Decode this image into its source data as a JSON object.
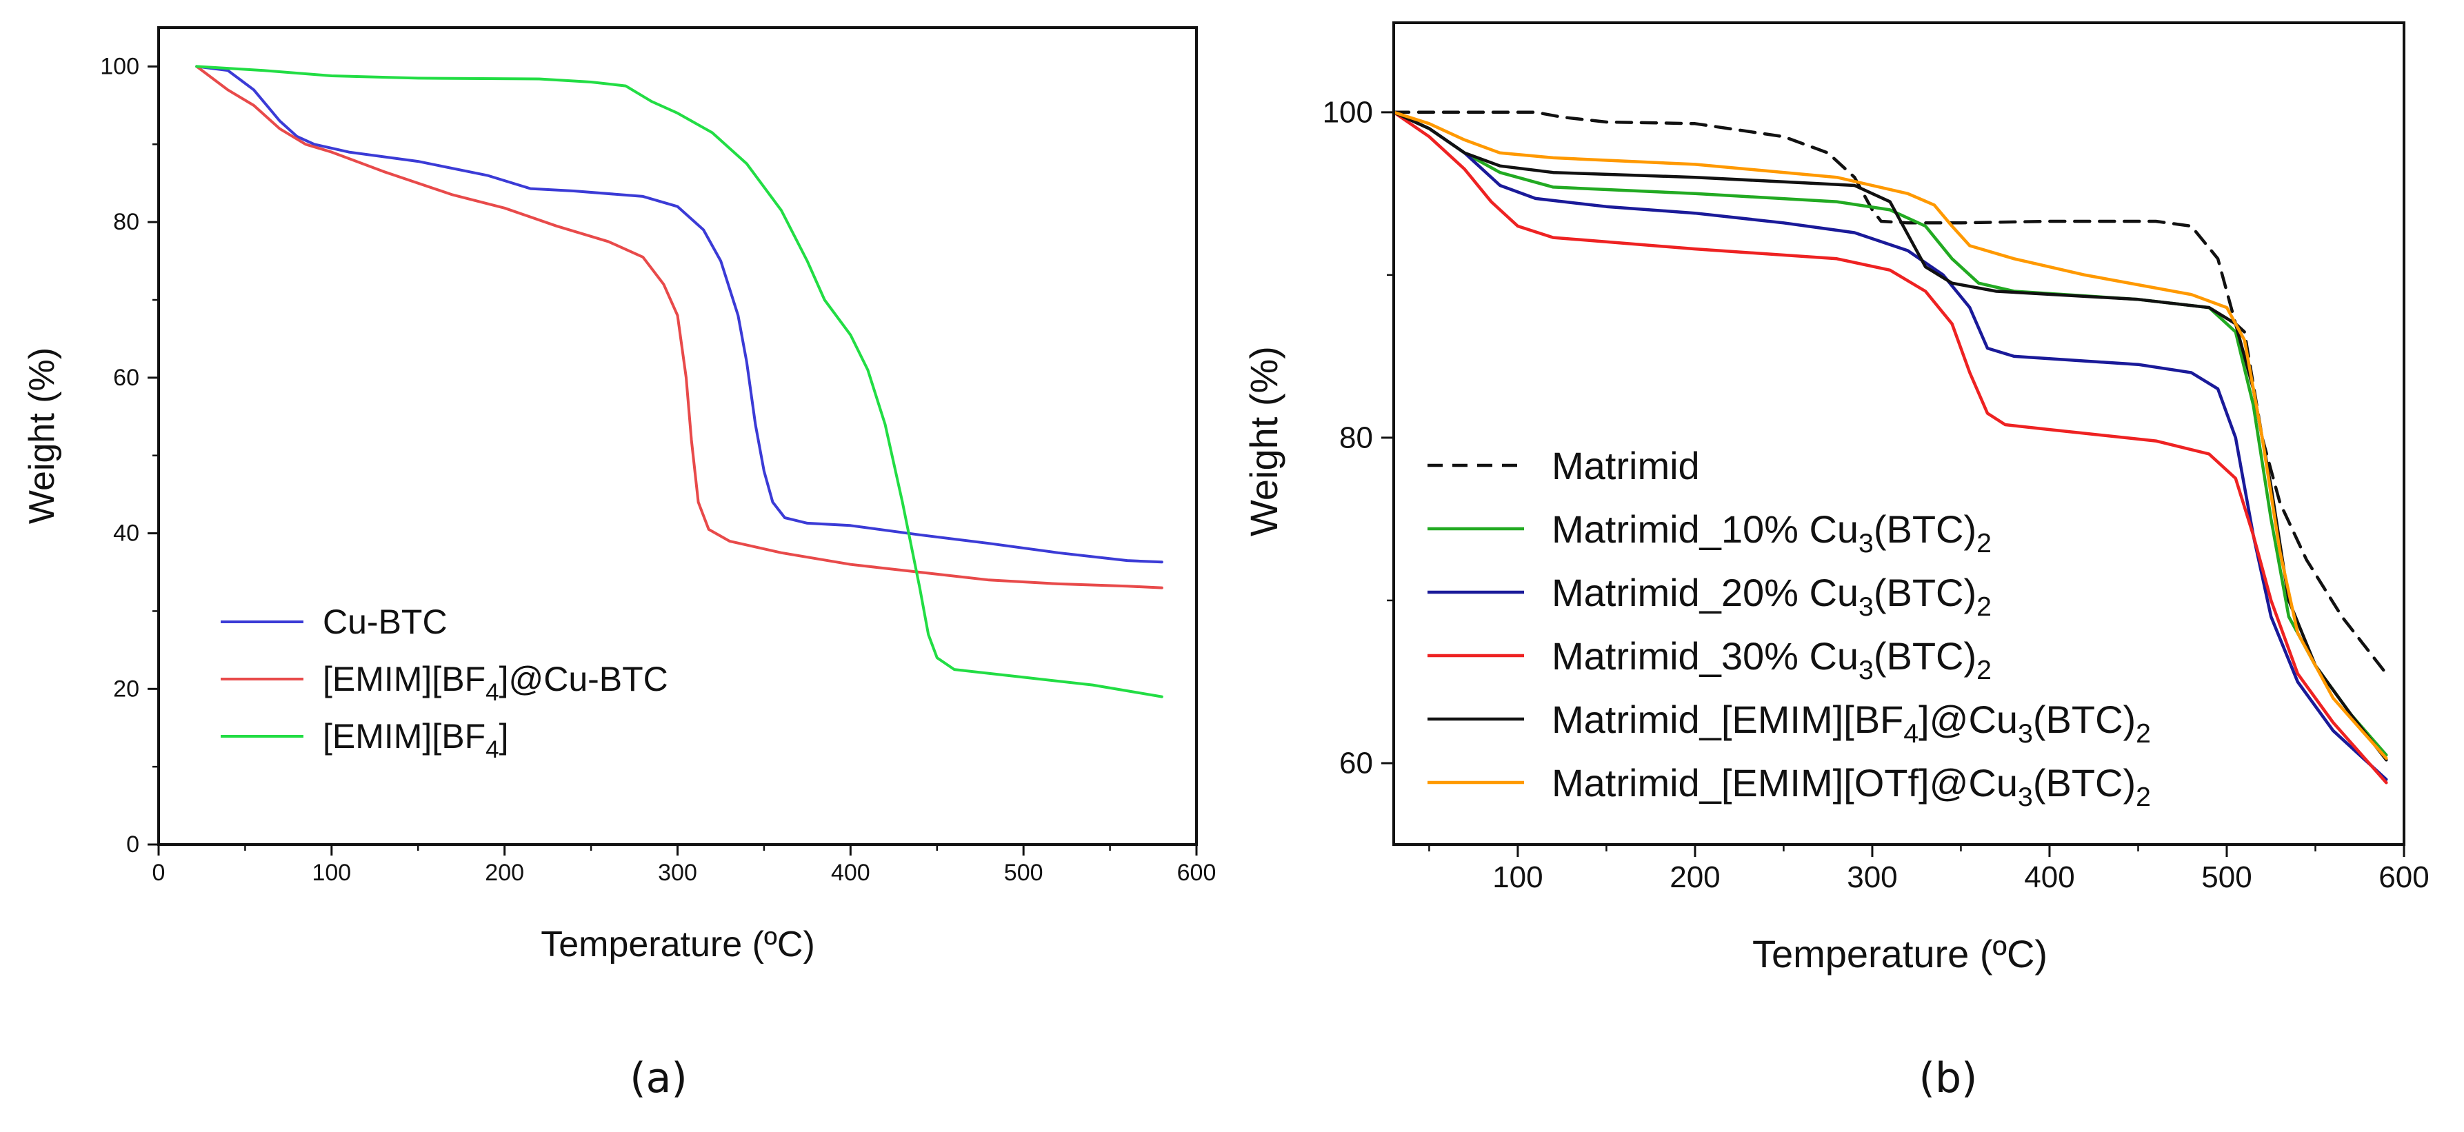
{
  "chart_data": [
    {
      "type": "line",
      "xlabel": "Temperature (ºC)",
      "ylabel": "Weight (%)",
      "xlim": [
        0,
        600
      ],
      "ylim": [
        0,
        105
      ],
      "xticks": [
        0,
        100,
        200,
        300,
        400,
        500,
        600
      ],
      "yticks": [
        0,
        20,
        40,
        60,
        80,
        100
      ],
      "grid": false,
      "legend_position": "bottom-left",
      "panel_label": "(a)",
      "series": [
        {
          "name": "Cu-BTC",
          "legend_base": "Cu-BTC",
          "color": "#3b3bd6",
          "dash": "solid",
          "points": [
            [
              22,
              100
            ],
            [
              40,
              99.5
            ],
            [
              55,
              97
            ],
            [
              70,
              93
            ],
            [
              80,
              91
            ],
            [
              90,
              90
            ],
            [
              110,
              89
            ],
            [
              150,
              87.8
            ],
            [
              190,
              86
            ],
            [
              215,
              84.3
            ],
            [
              240,
              84
            ],
            [
              280,
              83.3
            ],
            [
              300,
              82
            ],
            [
              315,
              79
            ],
            [
              325,
              75
            ],
            [
              335,
              68
            ],
            [
              340,
              62
            ],
            [
              345,
              54
            ],
            [
              350,
              48
            ],
            [
              355,
              44
            ],
            [
              362,
              42
            ],
            [
              375,
              41.3
            ],
            [
              400,
              41
            ],
            [
              440,
              39.8
            ],
            [
              480,
              38.7
            ],
            [
              520,
              37.5
            ],
            [
              560,
              36.5
            ],
            [
              580,
              36.3
            ]
          ]
        },
        {
          "name": "[EMIM][BF4]@Cu-BTC",
          "legend_base": "[EMIM][BF",
          "legend_sub": "4",
          "legend_tail": "]@Cu-BTC",
          "color": "#e84a4a",
          "dash": "solid",
          "points": [
            [
              22,
              100
            ],
            [
              40,
              97
            ],
            [
              55,
              95
            ],
            [
              70,
              92
            ],
            [
              85,
              90
            ],
            [
              100,
              89
            ],
            [
              130,
              86.5
            ],
            [
              170,
              83.5
            ],
            [
              200,
              81.8
            ],
            [
              230,
              79.5
            ],
            [
              260,
              77.5
            ],
            [
              280,
              75.5
            ],
            [
              292,
              72
            ],
            [
              300,
              68
            ],
            [
              305,
              60
            ],
            [
              308,
              52
            ],
            [
              312,
              44
            ],
            [
              318,
              40.5
            ],
            [
              330,
              39
            ],
            [
              360,
              37.5
            ],
            [
              400,
              36
            ],
            [
              440,
              35
            ],
            [
              480,
              34
            ],
            [
              520,
              33.5
            ],
            [
              560,
              33.2
            ],
            [
              580,
              33
            ]
          ]
        },
        {
          "name": "[EMIM][BF4]",
          "legend_base": "[EMIM][BF",
          "legend_sub": "4",
          "legend_tail": "]",
          "color": "#22dd44",
          "dash": "solid",
          "points": [
            [
              22,
              100
            ],
            [
              60,
              99.5
            ],
            [
              100,
              98.8
            ],
            [
              150,
              98.5
            ],
            [
              220,
              98.4
            ],
            [
              250,
              98
            ],
            [
              270,
              97.5
            ],
            [
              285,
              95.5
            ],
            [
              300,
              94
            ],
            [
              320,
              91.5
            ],
            [
              340,
              87.5
            ],
            [
              360,
              81.5
            ],
            [
              375,
              75
            ],
            [
              385,
              70
            ],
            [
              400,
              65.5
            ],
            [
              410,
              61
            ],
            [
              420,
              54
            ],
            [
              430,
              44
            ],
            [
              440,
              33
            ],
            [
              445,
              27
            ],
            [
              450,
              24
            ],
            [
              460,
              22.5
            ],
            [
              500,
              21.5
            ],
            [
              540,
              20.5
            ],
            [
              580,
              19
            ]
          ]
        }
      ]
    },
    {
      "type": "line",
      "xlabel": "Temperature (ºC)",
      "ylabel": "Weight (%)",
      "xlim": [
        30,
        600
      ],
      "ylim": [
        55,
        105.5
      ],
      "xticks": [
        100,
        200,
        300,
        400,
        500,
        600
      ],
      "yticks": [
        60,
        80,
        100
      ],
      "grid": false,
      "legend_position": "center-left",
      "panel_label": "(b)",
      "series": [
        {
          "name": "Matrimid",
          "legend_base": "Matrimid",
          "color": "#111111",
          "dash": "dashed",
          "points": [
            [
              30,
              100
            ],
            [
              60,
              100
            ],
            [
              90,
              100
            ],
            [
              110,
              100
            ],
            [
              125,
              99.7
            ],
            [
              150,
              99.4
            ],
            [
              200,
              99.3
            ],
            [
              250,
              98.5
            ],
            [
              275,
              97.5
            ],
            [
              290,
              96
            ],
            [
              300,
              94
            ],
            [
              305,
              93.3
            ],
            [
              320,
              93.2
            ],
            [
              350,
              93.2
            ],
            [
              400,
              93.3
            ],
            [
              460,
              93.3
            ],
            [
              480,
              93
            ],
            [
              495,
              91
            ],
            [
              505,
              87
            ],
            [
              510,
              86.5
            ],
            [
              520,
              80
            ],
            [
              530,
              76
            ],
            [
              545,
              72.5
            ],
            [
              565,
              69
            ],
            [
              590,
              65.5
            ]
          ]
        },
        {
          "name": "Matrimid_10% Cu3(BTC)2",
          "legend_base": "Matrimid_10% Cu",
          "legend_sub": "3",
          "legend_tail": "(BTC)",
          "legend_sub2": "2",
          "color": "#22aa22",
          "dash": "solid",
          "points": [
            [
              30,
              100
            ],
            [
              50,
              99
            ],
            [
              70,
              97.5
            ],
            [
              90,
              96.3
            ],
            [
              120,
              95.4
            ],
            [
              200,
              95
            ],
            [
              280,
              94.5
            ],
            [
              310,
              94
            ],
            [
              330,
              93
            ],
            [
              345,
              91
            ],
            [
              360,
              89.5
            ],
            [
              380,
              89
            ],
            [
              450,
              88.5
            ],
            [
              490,
              88
            ],
            [
              505,
              86.5
            ],
            [
              515,
              82
            ],
            [
              525,
              75
            ],
            [
              535,
              69
            ],
            [
              550,
              66
            ],
            [
              570,
              63
            ],
            [
              590,
              60.5
            ]
          ]
        },
        {
          "name": "Matrimid_20% Cu3(BTC)2",
          "legend_base": "Matrimid_20% Cu",
          "legend_sub": "3",
          "legend_tail": "(BTC)",
          "legend_sub2": "2",
          "color": "#1a1a99",
          "dash": "solid",
          "points": [
            [
              30,
              100
            ],
            [
              50,
              99
            ],
            [
              70,
              97.5
            ],
            [
              90,
              95.5
            ],
            [
              110,
              94.7
            ],
            [
              150,
              94.2
            ],
            [
              200,
              93.8
            ],
            [
              250,
              93.2
            ],
            [
              290,
              92.6
            ],
            [
              320,
              91.5
            ],
            [
              340,
              90
            ],
            [
              355,
              88
            ],
            [
              365,
              85.5
            ],
            [
              380,
              85
            ],
            [
              450,
              84.5
            ],
            [
              480,
              84
            ],
            [
              495,
              83
            ],
            [
              505,
              80
            ],
            [
              515,
              74
            ],
            [
              525,
              69
            ],
            [
              540,
              65
            ],
            [
              560,
              62
            ],
            [
              590,
              59
            ]
          ]
        },
        {
          "name": "Matrimid_30% Cu3(BTC)2",
          "legend_base": "Matrimid_30% Cu",
          "legend_sub": "3",
          "legend_tail": "(BTC)",
          "legend_sub2": "2",
          "color": "#ee2222",
          "dash": "solid",
          "points": [
            [
              30,
              100
            ],
            [
              50,
              98.5
            ],
            [
              70,
              96.5
            ],
            [
              85,
              94.5
            ],
            [
              100,
              93
            ],
            [
              120,
              92.3
            ],
            [
              200,
              91.6
            ],
            [
              280,
              91
            ],
            [
              310,
              90.3
            ],
            [
              330,
              89
            ],
            [
              345,
              87
            ],
            [
              355,
              84
            ],
            [
              365,
              81.5
            ],
            [
              375,
              80.8
            ],
            [
              400,
              80.5
            ],
            [
              460,
              79.8
            ],
            [
              490,
              79
            ],
            [
              505,
              77.5
            ],
            [
              515,
              74
            ],
            [
              525,
              70
            ],
            [
              540,
              65.5
            ],
            [
              560,
              62.5
            ],
            [
              590,
              58.8
            ]
          ]
        },
        {
          "name": "Matrimid_[EMIM][BF4]@Cu3(BTC)2",
          "legend_base": "Matrimid_[EMIM][BF",
          "legend_sub": "4",
          "legend_tail": "]@Cu",
          "legend_sub2": "3",
          "legend_tail2": "(BTC)",
          "legend_sub3": "2",
          "color": "#111111",
          "dash": "solid",
          "points": [
            [
              30,
              100
            ],
            [
              50,
              99
            ],
            [
              70,
              97.5
            ],
            [
              90,
              96.7
            ],
            [
              120,
              96.3
            ],
            [
              200,
              96
            ],
            [
              290,
              95.5
            ],
            [
              310,
              94.5
            ],
            [
              320,
              92.5
            ],
            [
              330,
              90.5
            ],
            [
              345,
              89.5
            ],
            [
              370,
              89
            ],
            [
              450,
              88.5
            ],
            [
              490,
              88
            ],
            [
              505,
              87
            ],
            [
              515,
              83
            ],
            [
              525,
              77
            ],
            [
              535,
              70
            ],
            [
              550,
              66
            ],
            [
              570,
              63
            ],
            [
              590,
              60.2
            ]
          ]
        },
        {
          "name": "Matrimid_[EMIM][OTf]@Cu3(BTC)2",
          "legend_base": "Matrimid_[EMIM][OTf]@Cu",
          "legend_sub": "3",
          "legend_tail": "(BTC)",
          "legend_sub2": "2",
          "color": "#ff9900",
          "dash": "solid",
          "points": [
            [
              30,
              100
            ],
            [
              50,
              99.3
            ],
            [
              70,
              98.3
            ],
            [
              90,
              97.5
            ],
            [
              120,
              97.2
            ],
            [
              200,
              96.8
            ],
            [
              280,
              96
            ],
            [
              320,
              95
            ],
            [
              335,
              94.3
            ],
            [
              345,
              93
            ],
            [
              355,
              91.8
            ],
            [
              380,
              91
            ],
            [
              420,
              90
            ],
            [
              480,
              88.8
            ],
            [
              500,
              88
            ],
            [
              510,
              86
            ],
            [
              520,
              80
            ],
            [
              530,
              73
            ],
            [
              540,
              68
            ],
            [
              560,
              64
            ],
            [
              590,
              60.3
            ]
          ]
        }
      ]
    }
  ]
}
